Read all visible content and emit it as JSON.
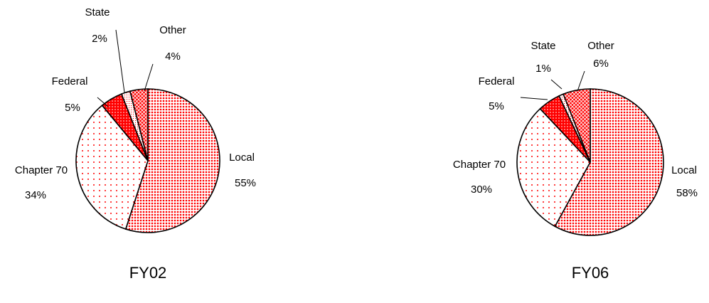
{
  "chart_data": [
    {
      "type": "pie",
      "title": "FY02",
      "categories": [
        "Local",
        "Chapter 70",
        "Federal",
        "State",
        "Other"
      ],
      "values": [
        55,
        34,
        5,
        2,
        4
      ],
      "value_labels": [
        "55%",
        "34%",
        "5%",
        "2%",
        "4%"
      ],
      "colors": [
        "#ff0000",
        "#ff0000",
        "#ff0000",
        "#ff0000",
        "#ff0000"
      ]
    },
    {
      "type": "pie",
      "title": "FY06",
      "categories": [
        "Local",
        "Chapter 70",
        "Federal",
        "State",
        "Other"
      ],
      "values": [
        58,
        30,
        5,
        1,
        6
      ],
      "value_labels": [
        "58%",
        "30%",
        "5%",
        "1%",
        "6%"
      ],
      "colors": [
        "#ff0000",
        "#ff0000",
        "#ff0000",
        "#ff0000",
        "#ff0000"
      ]
    }
  ]
}
